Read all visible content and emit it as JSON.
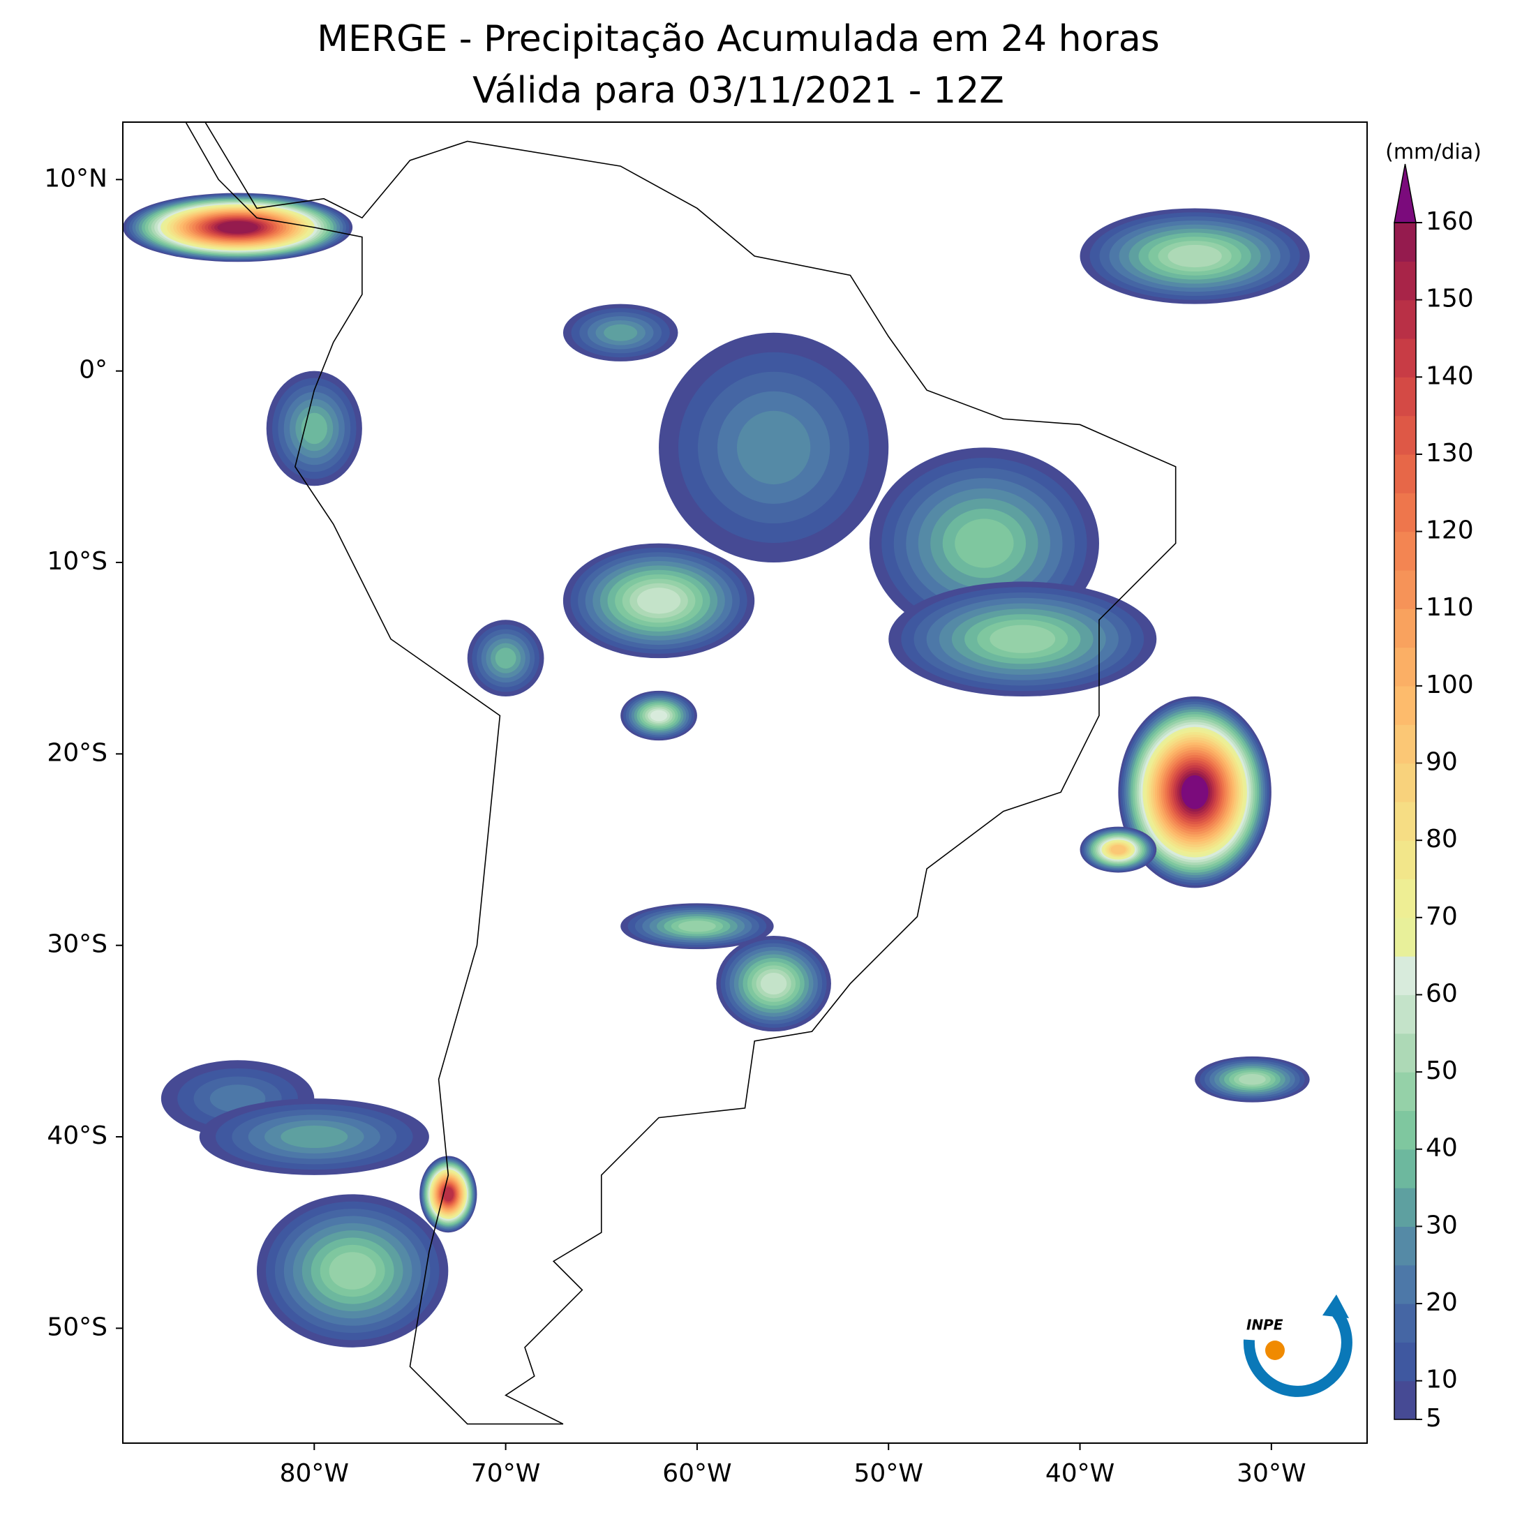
{
  "chart_data": {
    "type": "map",
    "title": "MERGE - Precipitação Acumulada em 24 horas",
    "subtitle": "Válida para 03/11/2021 - 12Z",
    "xlim": [
      -90,
      -25
    ],
    "ylim": [
      -56,
      13
    ],
    "xticks": [
      {
        "value": -80,
        "label": "80°W"
      },
      {
        "value": -70,
        "label": "70°W"
      },
      {
        "value": -60,
        "label": "60°W"
      },
      {
        "value": -50,
        "label": "50°W"
      },
      {
        "value": -40,
        "label": "40°W"
      },
      {
        "value": -30,
        "label": "30°W"
      }
    ],
    "yticks": [
      {
        "value": 10,
        "label": "10°N"
      },
      {
        "value": 0,
        "label": "0°"
      },
      {
        "value": -10,
        "label": "10°S"
      },
      {
        "value": -20,
        "label": "20°S"
      },
      {
        "value": -30,
        "label": "30°S"
      },
      {
        "value": -40,
        "label": "40°S"
      },
      {
        "value": -50,
        "label": "50°S"
      }
    ],
    "colorbar": {
      "label": "(mm/dia)",
      "lim": [
        5,
        160
      ],
      "ticks": [
        5,
        10,
        20,
        30,
        40,
        50,
        60,
        70,
        80,
        90,
        100,
        110,
        120,
        130,
        140,
        150,
        160
      ],
      "colors": [
        "#464a94",
        "#3f58a0",
        "#4566a4",
        "#4d78a8",
        "#558aa6",
        "#5ea0a0",
        "#6db89e",
        "#7fc79f",
        "#95d1a8",
        "#add9b6",
        "#c4e3c9",
        "#d8ebdc",
        "#e8f09a",
        "#eeee94",
        "#f2e68a",
        "#f6dd84",
        "#f8d27c",
        "#fbc775",
        "#fdbb6c",
        "#fbaf65",
        "#f9a25e",
        "#f69358",
        "#f38552",
        "#ee764c",
        "#e76748",
        "#de5846",
        "#d44a45",
        "#c83c45",
        "#b93046",
        "#a82448",
        "#951b4e"
      ],
      "extend_color": "#7b0b7c"
    },
    "logo": "INPE"
  }
}
